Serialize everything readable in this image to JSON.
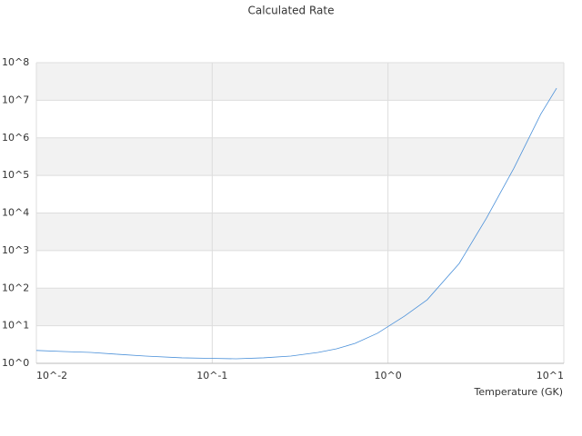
{
  "chart_data": {
    "type": "line",
    "title": "Calculated Rate",
    "x_label": "Temperature (GK)",
    "x": [
      0.01,
      0.0143,
      0.0204,
      0.0292,
      0.0417,
      0.0672,
      0.0961,
      0.137,
      0.196,
      0.28,
      0.4,
      0.51,
      0.65,
      0.87,
      1.24,
      1.67,
      2.54,
      3.63,
      5.2,
      7.4,
      9.1
    ],
    "series": [
      {
        "color": "#4a90d9",
        "values": [
          2.2,
          2.06,
          1.95,
          1.74,
          1.56,
          1.4,
          1.36,
          1.32,
          1.4,
          1.56,
          1.95,
          2.43,
          3.4,
          6.3,
          18,
          49,
          453,
          7300,
          156000,
          4300000,
          21000000
        ]
      }
    ],
    "xlim": [
      0.01,
      10
    ],
    "ylim": [
      1,
      100000000
    ],
    "xticks": [
      {
        "value": 0.01,
        "label": "10^-2"
      },
      {
        "value": 0.1,
        "label": "10^-1"
      },
      {
        "value": 1,
        "label": "10^0"
      },
      {
        "value": 10,
        "label": "10^1"
      }
    ],
    "yticks": [
      {
        "value": 1,
        "label": "10^0"
      },
      {
        "value": 10,
        "label": "10^1"
      },
      {
        "value": 100,
        "label": "10^2"
      },
      {
        "value": 1000,
        "label": "10^3"
      },
      {
        "value": 10000,
        "label": "10^4"
      },
      {
        "value": 100000,
        "label": "10^5"
      },
      {
        "value": 1000000,
        "label": "10^6"
      },
      {
        "value": 10000000,
        "label": "10^7"
      },
      {
        "value": 100000000,
        "label": "10^8"
      }
    ],
    "xscale": "log",
    "yscale": "log",
    "grid_bands": true
  }
}
